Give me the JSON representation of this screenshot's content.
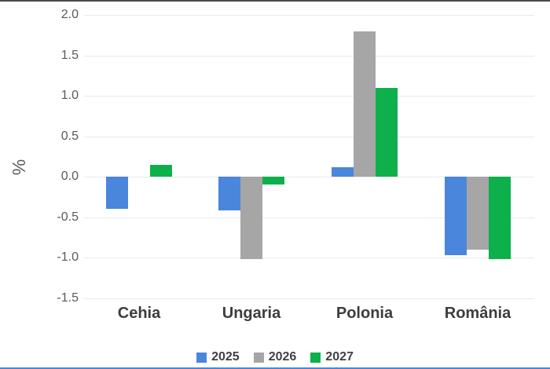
{
  "window": {
    "background": "#ffffff",
    "top_border_color": "#4b4b4b",
    "bottom_border_color": "#4a86dc"
  },
  "chart_data": {
    "type": "bar",
    "title": "",
    "xlabel": "",
    "ylabel": "%",
    "categories": [
      "Cehia",
      "Ungaria",
      "Polonia",
      "România"
    ],
    "series": [
      {
        "name": "2025",
        "color": "#4a86dc",
        "values": [
          -0.4,
          -0.42,
          0.12,
          -0.97
        ]
      },
      {
        "name": "2026",
        "color": "#a6a6a6",
        "values": [
          0.0,
          -1.02,
          1.8,
          -0.9
        ]
      },
      {
        "name": "2027",
        "color": "#0db04b",
        "values": [
          0.15,
          -0.1,
          1.1,
          -1.02
        ]
      }
    ],
    "ylim": [
      -1.5,
      2.0
    ],
    "ytick_step": 0.5,
    "yticks": [
      "2.0",
      "1.5",
      "1.0",
      "0.5",
      "0.0",
      "-0.5",
      "-1.0",
      "-1.5"
    ],
    "grid": true,
    "gridline_color": "#e9e9e9",
    "tick_label_color": "#595959",
    "category_label_color": "#3d3d3d",
    "legend_position": "bottom-center"
  }
}
